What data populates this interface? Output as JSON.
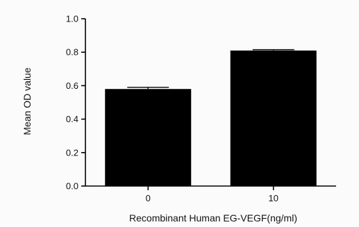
{
  "chart_data": {
    "type": "bar",
    "categories": [
      "0",
      "10"
    ],
    "values": [
      0.58,
      0.81
    ],
    "error_upper": [
      0.59,
      0.815
    ],
    "title": "",
    "xlabel": "Recombinant Human EG-VEGF(ng/ml)",
    "ylabel": "Mean OD value",
    "ylim": [
      0,
      1.0
    ],
    "yticks": [
      "0.0",
      "0.2",
      "0.4",
      "0.6",
      "0.8",
      "1.0"
    ],
    "grid": false,
    "legend": "none",
    "colors": {
      "bar": "#000000",
      "axis": "#000000",
      "background": "#fbfbfb"
    }
  }
}
